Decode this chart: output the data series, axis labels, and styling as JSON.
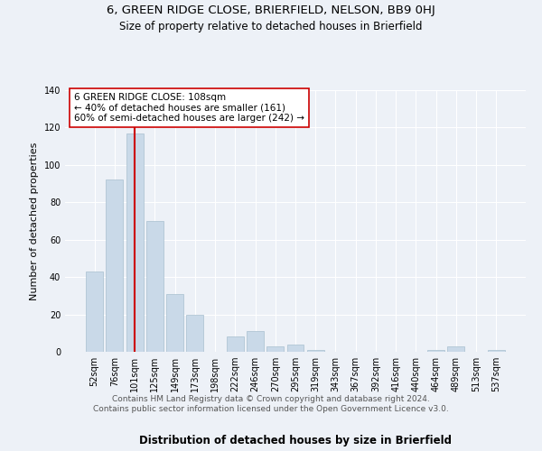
{
  "title": "6, GREEN RIDGE CLOSE, BRIERFIELD, NELSON, BB9 0HJ",
  "subtitle": "Size of property relative to detached houses in Brierfield",
  "xlabel": "Distribution of detached houses by size in Brierfield",
  "ylabel": "Number of detached properties",
  "bar_labels": [
    "52sqm",
    "76sqm",
    "101sqm",
    "125sqm",
    "149sqm",
    "173sqm",
    "198sqm",
    "222sqm",
    "246sqm",
    "270sqm",
    "295sqm",
    "319sqm",
    "343sqm",
    "367sqm",
    "392sqm",
    "416sqm",
    "440sqm",
    "464sqm",
    "489sqm",
    "513sqm",
    "537sqm"
  ],
  "bar_values": [
    43,
    92,
    117,
    70,
    31,
    20,
    0,
    8,
    11,
    3,
    4,
    1,
    0,
    0,
    0,
    0,
    0,
    1,
    3,
    0,
    1
  ],
  "bar_color": "#c9d9e8",
  "bar_edge_color": "#a8bfcf",
  "vline_x": 2,
  "vline_color": "#cc0000",
  "annotation_text": "6 GREEN RIDGE CLOSE: 108sqm\n← 40% of detached houses are smaller (161)\n60% of semi-detached houses are larger (242) →",
  "annotation_box_color": "#ffffff",
  "annotation_box_edge_color": "#cc0000",
  "ylim": [
    0,
    140
  ],
  "yticks": [
    0,
    20,
    40,
    60,
    80,
    100,
    120,
    140
  ],
  "bg_color": "#edf1f7",
  "plot_bg_color": "#edf1f7",
  "footer": "Contains HM Land Registry data © Crown copyright and database right 2024.\nContains public sector information licensed under the Open Government Licence v3.0.",
  "title_fontsize": 9.5,
  "subtitle_fontsize": 8.5,
  "xlabel_fontsize": 8.5,
  "ylabel_fontsize": 8,
  "tick_fontsize": 7,
  "annotation_fontsize": 7.5,
  "footer_fontsize": 6.5
}
